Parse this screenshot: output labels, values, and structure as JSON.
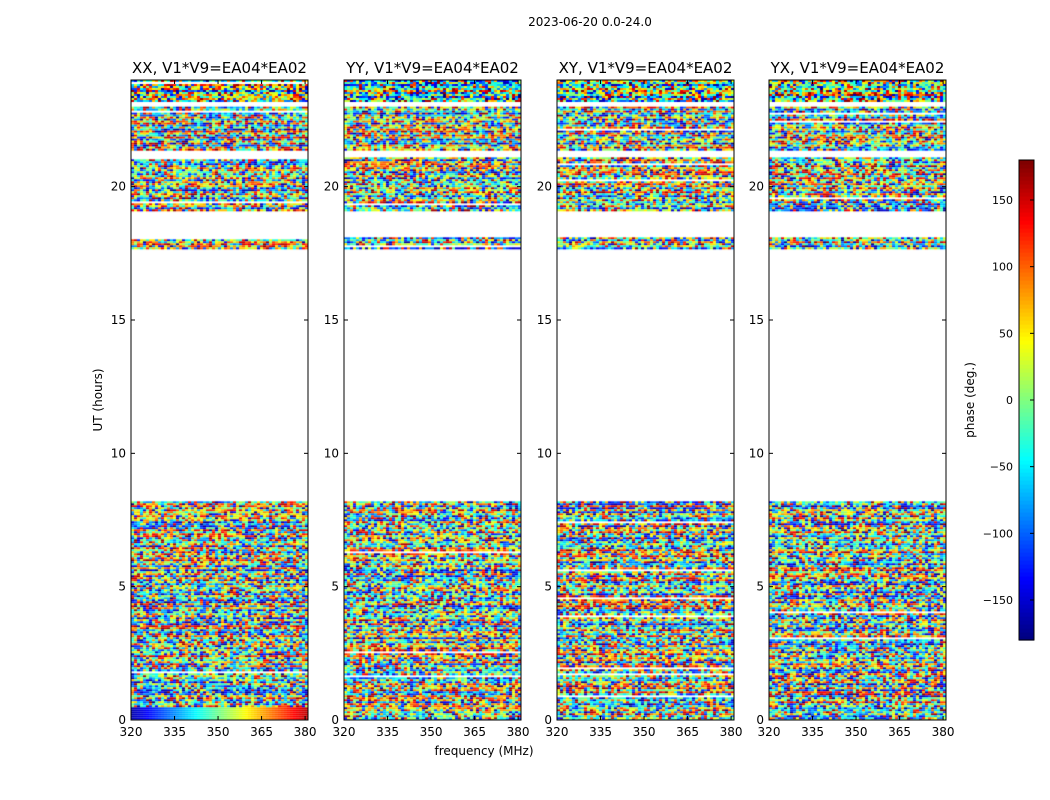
{
  "suptitle": "2023-06-20 0.0-24.0",
  "chart_data": {
    "type": "heatmap",
    "xlabel": "frequency (MHz)",
    "ylabel": "UT (hours)",
    "xlim": [
      320,
      381
    ],
    "ylim": [
      0,
      24
    ],
    "xticks": [
      320,
      335,
      350,
      365,
      380
    ],
    "yticks": [
      0,
      5,
      10,
      15,
      20
    ],
    "colorbar": {
      "label": "phase (deg.)",
      "range": [
        -180,
        180
      ],
      "ticks": [
        -150,
        -100,
        -50,
        0,
        50,
        100,
        150
      ],
      "tick_labels": [
        "−150",
        "−100",
        "−50",
        "0",
        "50",
        "100",
        "150"
      ],
      "colormap": "jet"
    },
    "panels": [
      {
        "title": "XX, V1*V9=EA04*EA02"
      },
      {
        "title": "YY, V1*V9=EA04*EA02"
      },
      {
        "title": "XY, V1*V9=EA04*EA02"
      },
      {
        "title": "YX, V1*V9=EA04*EA02"
      }
    ],
    "data_time_ranges_hours": [
      [
        0.0,
        8.2
      ],
      [
        17.7,
        18.1
      ],
      [
        19.1,
        21.1
      ],
      [
        21.4,
        23.0
      ],
      [
        23.2,
        24.0
      ]
    ]
  }
}
